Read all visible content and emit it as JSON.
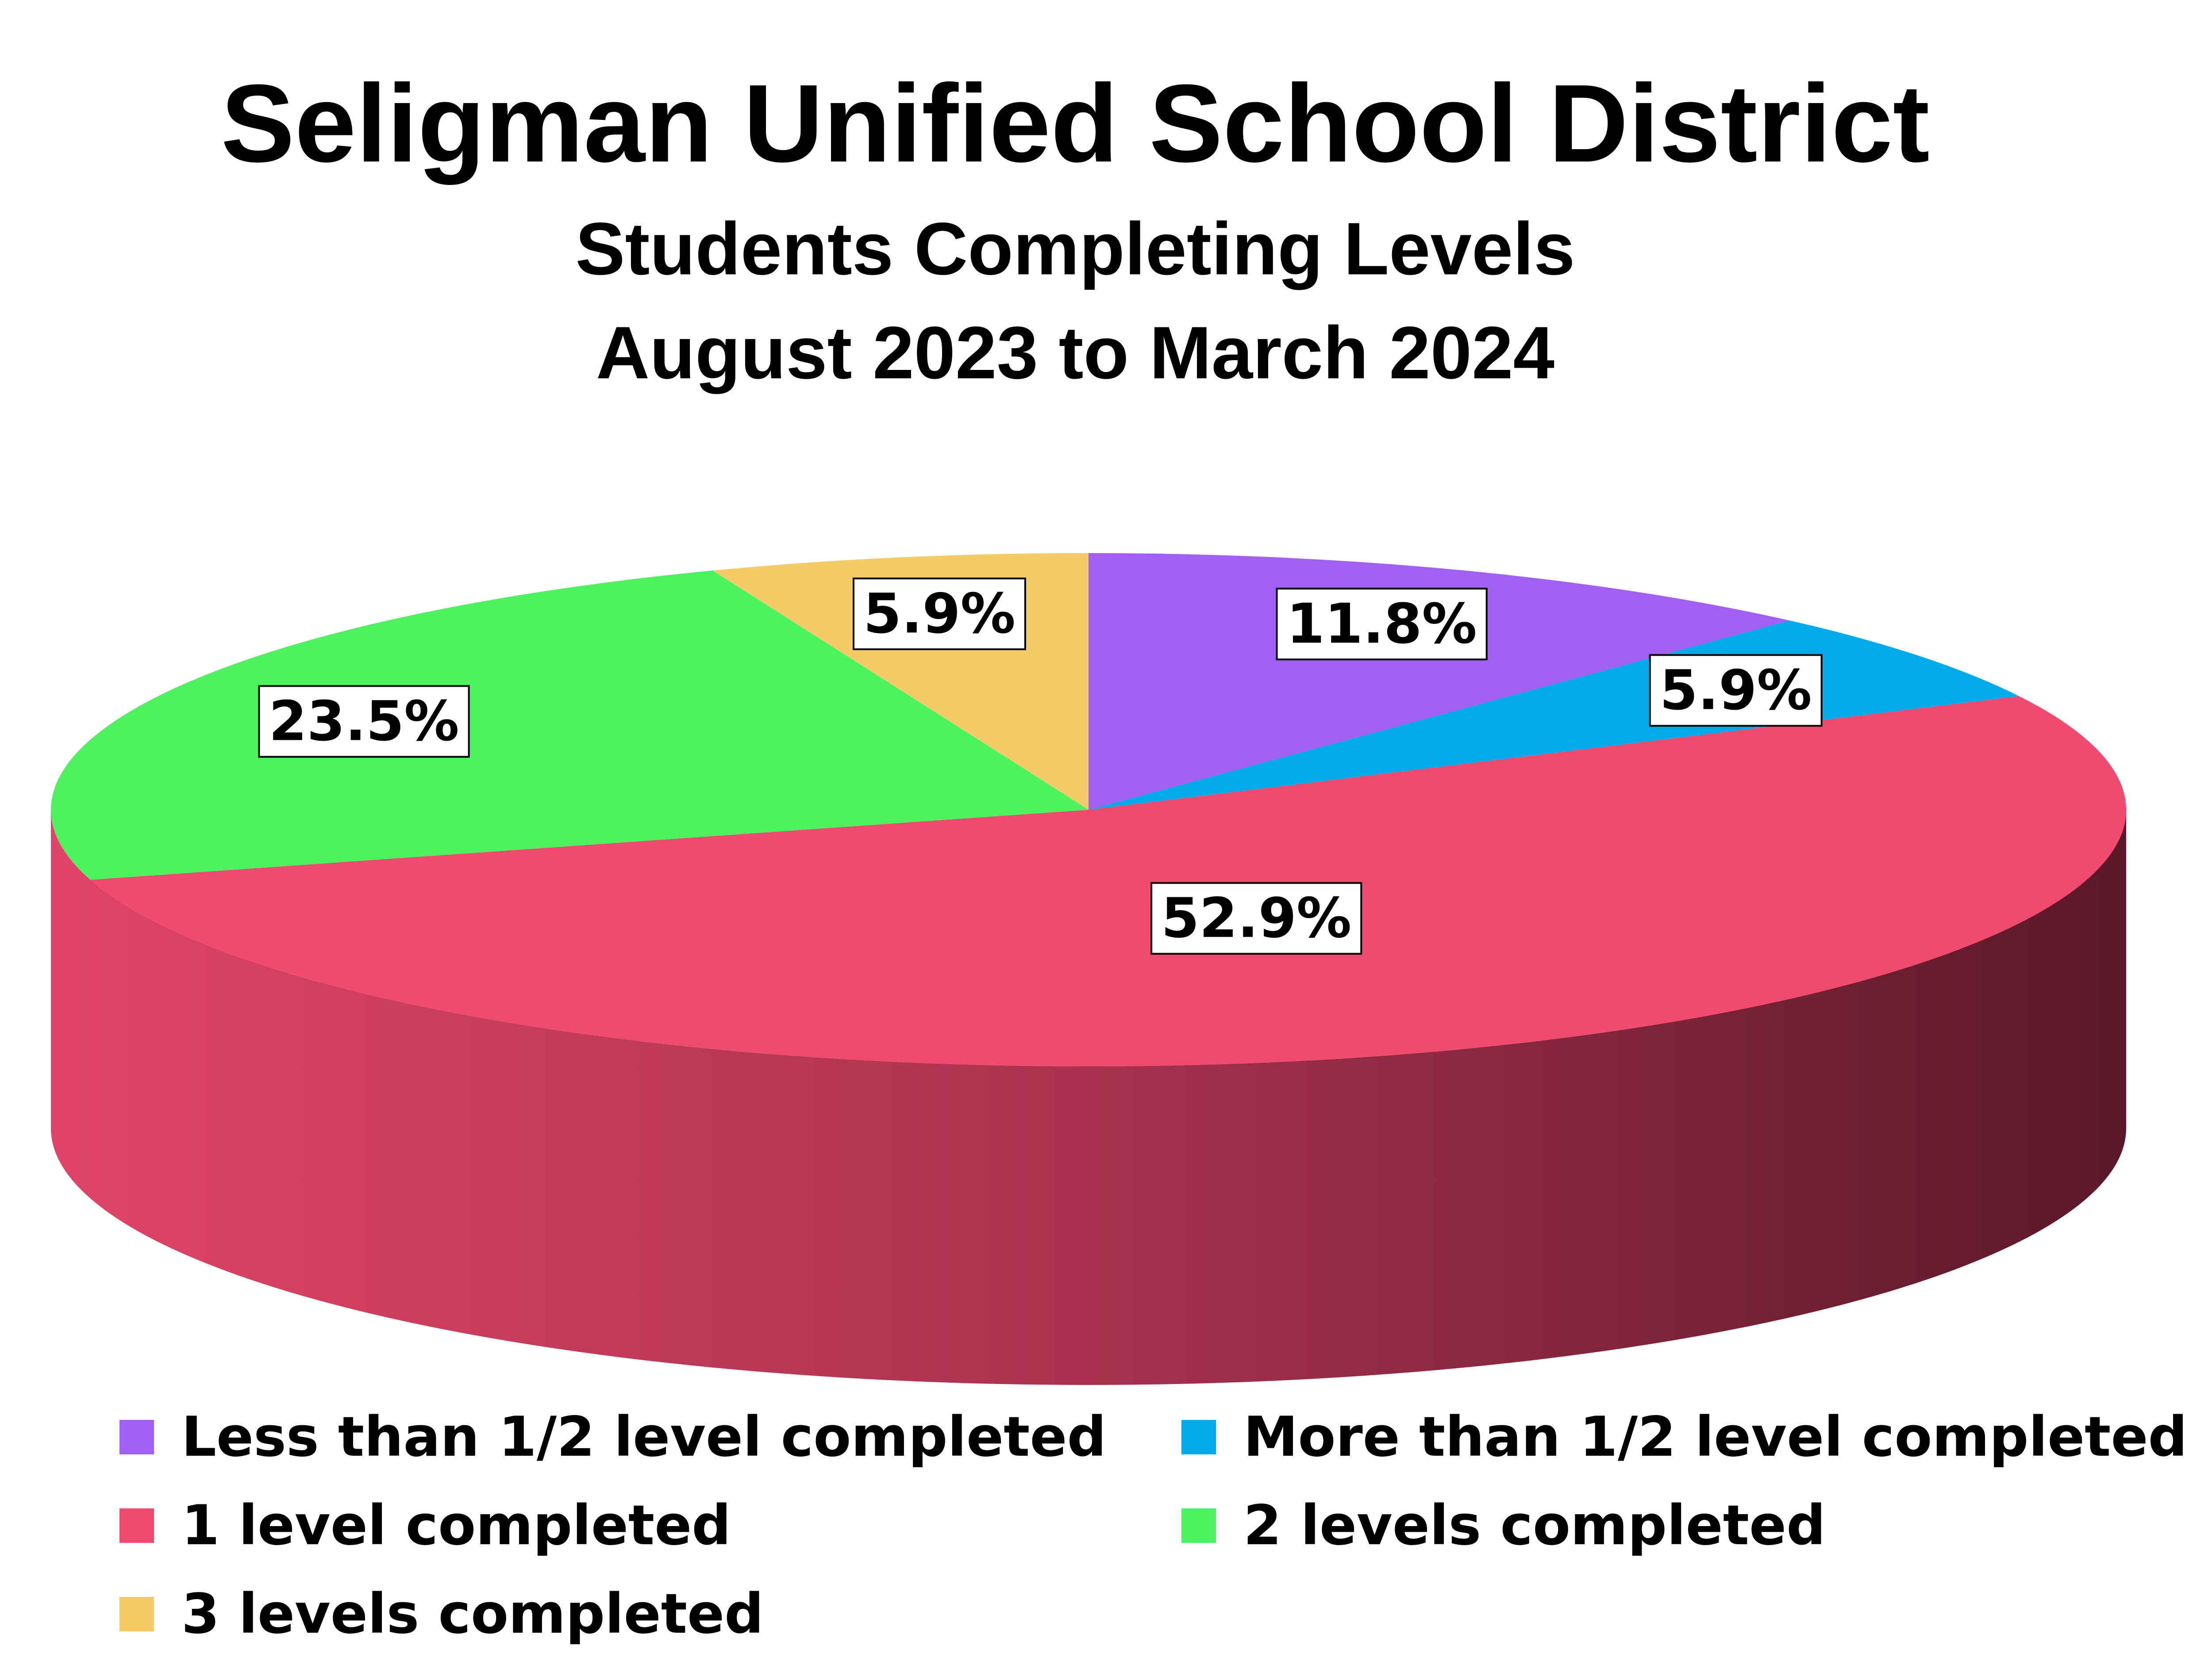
{
  "chart_data": {
    "type": "pie",
    "title": "Seligman Unified School District",
    "subtitle_lines": [
      "Students Completing Levels",
      "August 2023 to March 2024"
    ],
    "slices": [
      {
        "name": "Less than 1/2 level completed",
        "value": 11.8,
        "label": "11.8%",
        "color": "#a25ff1"
      },
      {
        "name": "More than 1/2 level completed",
        "value": 5.9,
        "label": "5.9%",
        "color": "#03a9e9"
      },
      {
        "name": "1 level completed",
        "value": 52.9,
        "label": "52.9%",
        "color": "#f14a6f"
      },
      {
        "name": "2 levels completed",
        "value": 23.5,
        "label": "23.5%",
        "color": "#4cf35f"
      },
      {
        "name": "3 levels completed",
        "value": 5.9,
        "label": "5.9%",
        "color": "#f4cb66"
      }
    ],
    "legend_position": "bottom",
    "style": "3d"
  }
}
